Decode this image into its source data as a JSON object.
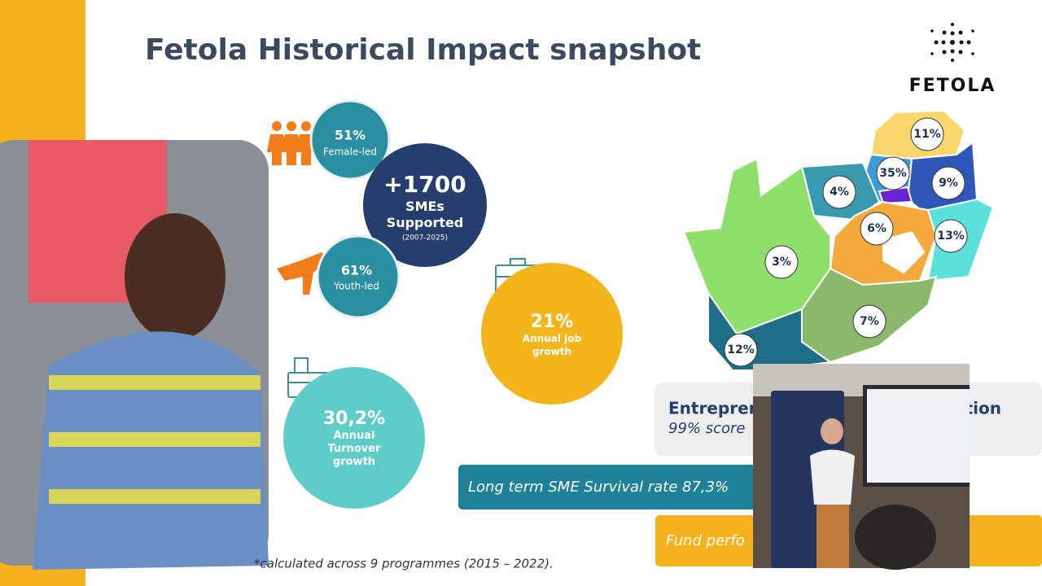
{
  "title": "Fetola Historical Impact snapshot",
  "logo": "FETOLA",
  "stats": {
    "female": {
      "value": "51%",
      "label": "Female-led"
    },
    "smes": {
      "value": "+1700",
      "label": "SMEs Supported",
      "period": "(2007-2025)"
    },
    "youth": {
      "value": "61%",
      "label": "Youth-led"
    },
    "jobs": {
      "value": "21%",
      "label": "Annual job growth"
    },
    "turnover": {
      "value": "30,2%",
      "label": "Annual Turnover growth"
    }
  },
  "map": {
    "labels": [
      "11%",
      "35%",
      "4%",
      "9%",
      "6%",
      "13%",
      "3%",
      "7%",
      "12%"
    ]
  },
  "panels": {
    "entrepreneur_left": "Entrepren",
    "entrepreneur_right": "tion",
    "entrepreneur_score": "99% score",
    "survival": "Long term SME Survival rate 87,3%",
    "fund": "Fund perfo"
  },
  "footnote": "*calculated across 9 programmes (2015 – 2022)."
}
